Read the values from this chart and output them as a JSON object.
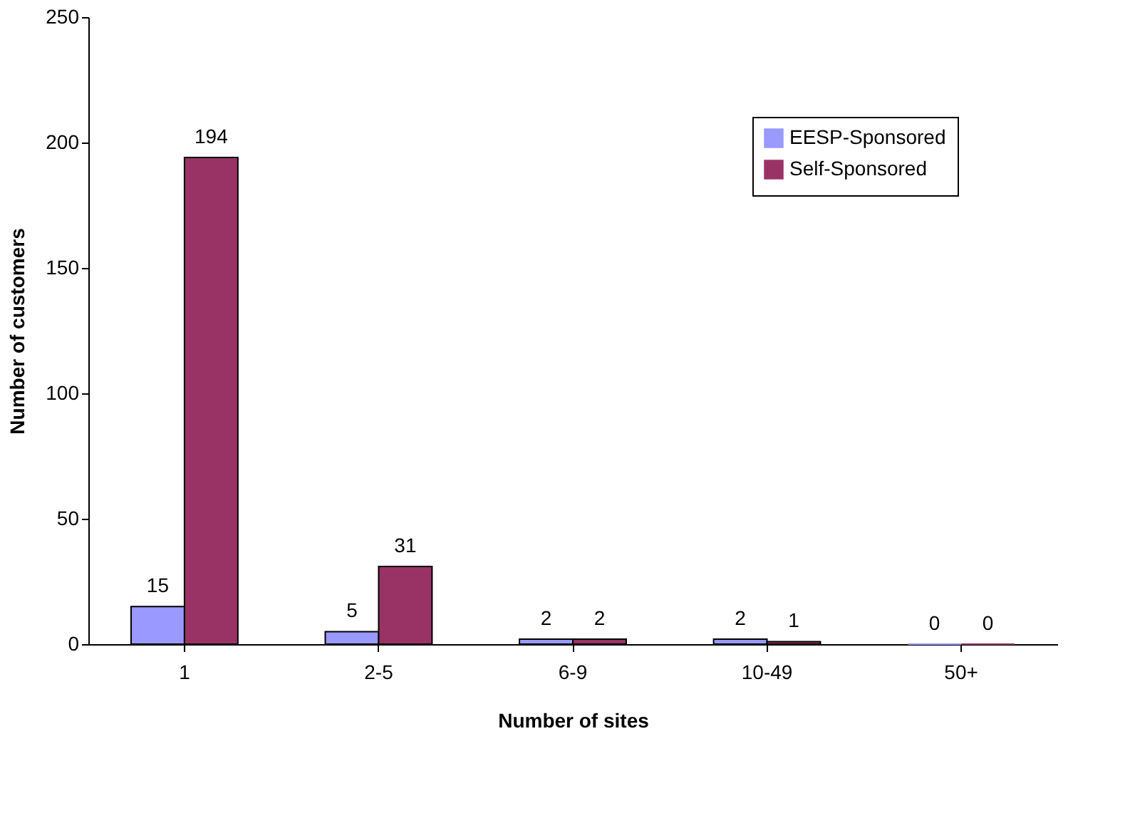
{
  "chart_data": {
    "type": "bar",
    "xlabel": "Number of sites",
    "ylabel": "Number of customers",
    "categories": [
      "1",
      "2-5",
      "6-9",
      "10-49",
      "50+"
    ],
    "series": [
      {
        "name": "EESP-Sponsored",
        "color": "#9999ff",
        "values": [
          15,
          5,
          2,
          2,
          0
        ]
      },
      {
        "name": "Self-Sponsored",
        "color": "#993366",
        "values": [
          194,
          31,
          2,
          1,
          0
        ]
      }
    ],
    "ylim": [
      0,
      250
    ],
    "yticks": [
      0,
      50,
      100,
      150,
      200,
      250
    ],
    "grid": false,
    "legend": "top right",
    "data_labels": true
  }
}
